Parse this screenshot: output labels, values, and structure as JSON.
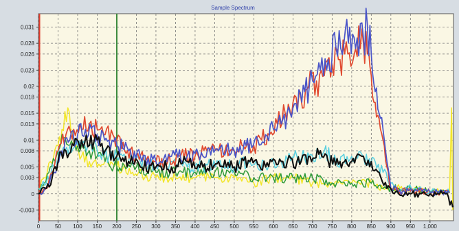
{
  "chart_data": {
    "type": "line",
    "title": "Sample Spectrum",
    "xlabel": "",
    "ylabel": "",
    "xlim": [
      0,
      1060
    ],
    "ylim": [
      -0.005,
      0.0335
    ],
    "grid": true,
    "legend": "none",
    "xticks": [
      0,
      50,
      100,
      150,
      200,
      250,
      300,
      350,
      400,
      450,
      500,
      550,
      600,
      650,
      700,
      750,
      800,
      850,
      900,
      950,
      1000
    ],
    "xtick_labels": [
      "0",
      "50",
      "100",
      "150",
      "200",
      "250",
      "300",
      "350",
      "400",
      "450",
      "500",
      "550",
      "600",
      "650",
      "700",
      "750",
      "800",
      "850",
      "900",
      "950",
      "1,000"
    ],
    "yticks": [
      -0.003,
      0,
      0.003,
      0.005,
      0.008,
      0.01,
      0.013,
      0.015,
      0.018,
      0.02,
      0.023,
      0.026,
      0.028,
      0.031
    ],
    "ytick_labels": [
      "-0.003",
      "0",
      "0.003",
      "0.005",
      "0.008",
      "0.01",
      "0.013",
      "0.015",
      "0.018",
      "0.02",
      "0.023",
      "0.026",
      "0.028",
      "0.031"
    ],
    "vertical_markers": [
      {
        "x": 0,
        "color": "#e03a2a"
      },
      {
        "x": 200,
        "color": "#3c8a3c"
      }
    ],
    "series": [
      {
        "color": "#f2e62a",
        "points": [
          [
            0,
            0.001
          ],
          [
            15,
            0.003
          ],
          [
            30,
            0.006
          ],
          [
            50,
            0.009
          ],
          [
            60,
            0.012
          ],
          [
            75,
            0.016
          ],
          [
            90,
            0.009
          ],
          [
            110,
            0.007
          ],
          [
            130,
            0.006
          ],
          [
            150,
            0.005
          ],
          [
            170,
            0.006
          ],
          [
            200,
            0.005
          ],
          [
            240,
            0.004
          ],
          [
            300,
            0.003
          ],
          [
            350,
            0.003
          ],
          [
            400,
            0.003
          ],
          [
            450,
            0.003
          ],
          [
            500,
            0.003
          ],
          [
            550,
            0.002
          ],
          [
            600,
            0.003
          ],
          [
            650,
            0.003
          ],
          [
            700,
            0.002
          ],
          [
            750,
            0.002
          ],
          [
            800,
            0.002
          ],
          [
            850,
            0.002
          ],
          [
            880,
            0.001
          ],
          [
            900,
            0.001
          ],
          [
            950,
            0.001
          ],
          [
            1000,
            0.0005
          ],
          [
            1050,
            0.0003
          ],
          [
            1055,
            0.016
          ],
          [
            1058,
            -0.003
          ]
        ]
      },
      {
        "color": "#2f9a3a",
        "points": [
          [
            0,
            0.001
          ],
          [
            15,
            0.002
          ],
          [
            30,
            0.005
          ],
          [
            50,
            0.008
          ],
          [
            60,
            0.011
          ],
          [
            80,
            0.009
          ],
          [
            100,
            0.009
          ],
          [
            130,
            0.008
          ],
          [
            150,
            0.007
          ],
          [
            170,
            0.006
          ],
          [
            200,
            0.005
          ],
          [
            250,
            0.005
          ],
          [
            300,
            0.004
          ],
          [
            350,
            0.004
          ],
          [
            400,
            0.004
          ],
          [
            450,
            0.004
          ],
          [
            500,
            0.004
          ],
          [
            550,
            0.003
          ],
          [
            600,
            0.003
          ],
          [
            650,
            0.003
          ],
          [
            700,
            0.003
          ],
          [
            750,
            0.002
          ],
          [
            800,
            0.002
          ],
          [
            850,
            0.002
          ],
          [
            880,
            0.001
          ],
          [
            900,
            0.001
          ],
          [
            950,
            0.001
          ],
          [
            1000,
            0.0005
          ],
          [
            1050,
            0.0003
          ]
        ]
      },
      {
        "color": "#5ad0e0",
        "points": [
          [
            0,
            0.001
          ],
          [
            20,
            0.002
          ],
          [
            40,
            0.005
          ],
          [
            60,
            0.008
          ],
          [
            80,
            0.009
          ],
          [
            100,
            0.009
          ],
          [
            130,
            0.009
          ],
          [
            150,
            0.008
          ],
          [
            180,
            0.007
          ],
          [
            200,
            0.007
          ],
          [
            230,
            0.006
          ],
          [
            260,
            0.006
          ],
          [
            300,
            0.005
          ],
          [
            340,
            0.006
          ],
          [
            380,
            0.005
          ],
          [
            420,
            0.005
          ],
          [
            460,
            0.006
          ],
          [
            500,
            0.005
          ],
          [
            540,
            0.006
          ],
          [
            580,
            0.005
          ],
          [
            620,
            0.006
          ],
          [
            660,
            0.007
          ],
          [
            700,
            0.007
          ],
          [
            730,
            0.008
          ],
          [
            760,
            0.006
          ],
          [
            800,
            0.007
          ],
          [
            830,
            0.007
          ],
          [
            860,
            0.006
          ],
          [
            880,
            0.004
          ],
          [
            900,
            0.002
          ],
          [
            930,
            0.001
          ],
          [
            960,
            0.001
          ],
          [
            1000,
            0.0005
          ],
          [
            1050,
            0.0003
          ]
        ]
      },
      {
        "color": "#e04a30",
        "points": [
          [
            0,
            0
          ],
          [
            20,
            0.001
          ],
          [
            35,
            0.004
          ],
          [
            50,
            0.008
          ],
          [
            70,
            0.011
          ],
          [
            90,
            0.012
          ],
          [
            110,
            0.012
          ],
          [
            130,
            0.013
          ],
          [
            150,
            0.012
          ],
          [
            170,
            0.011
          ],
          [
            190,
            0.011
          ],
          [
            200,
            0.01
          ],
          [
            220,
            0.008
          ],
          [
            250,
            0.007
          ],
          [
            280,
            0.007
          ],
          [
            300,
            0.006
          ],
          [
            330,
            0.006
          ],
          [
            360,
            0.007
          ],
          [
            400,
            0.007
          ],
          [
            430,
            0.008
          ],
          [
            460,
            0.008
          ],
          [
            500,
            0.008
          ],
          [
            520,
            0.009
          ],
          [
            550,
            0.009
          ],
          [
            570,
            0.01
          ],
          [
            590,
            0.011
          ],
          [
            610,
            0.013
          ],
          [
            630,
            0.015
          ],
          [
            650,
            0.017
          ],
          [
            670,
            0.018
          ],
          [
            690,
            0.02
          ],
          [
            710,
            0.021
          ],
          [
            730,
            0.022
          ],
          [
            750,
            0.024
          ],
          [
            770,
            0.025
          ],
          [
            790,
            0.026
          ],
          [
            810,
            0.027
          ],
          [
            830,
            0.028
          ],
          [
            840,
            0.026
          ],
          [
            850,
            0.022
          ],
          [
            860,
            0.017
          ],
          [
            870,
            0.014
          ],
          [
            880,
            0.01
          ],
          [
            890,
            0.005
          ],
          [
            900,
            0.001
          ],
          [
            920,
            0.0005
          ],
          [
            950,
            0.0005
          ],
          [
            1000,
            0.0003
          ],
          [
            1050,
            0.0002
          ]
        ]
      },
      {
        "color": "#4a55c8",
        "points": [
          [
            0,
            0
          ],
          [
            20,
            0.001
          ],
          [
            40,
            0.004
          ],
          [
            60,
            0.008
          ],
          [
            80,
            0.01
          ],
          [
            100,
            0.011
          ],
          [
            120,
            0.012
          ],
          [
            150,
            0.011
          ],
          [
            180,
            0.01
          ],
          [
            200,
            0.009
          ],
          [
            230,
            0.008
          ],
          [
            260,
            0.007
          ],
          [
            300,
            0.006
          ],
          [
            340,
            0.007
          ],
          [
            380,
            0.007
          ],
          [
            420,
            0.007
          ],
          [
            460,
            0.008
          ],
          [
            500,
            0.008
          ],
          [
            530,
            0.009
          ],
          [
            560,
            0.01
          ],
          [
            580,
            0.011
          ],
          [
            600,
            0.012
          ],
          [
            620,
            0.013
          ],
          [
            650,
            0.016
          ],
          [
            680,
            0.019
          ],
          [
            700,
            0.021
          ],
          [
            720,
            0.023
          ],
          [
            740,
            0.025
          ],
          [
            760,
            0.027
          ],
          [
            780,
            0.028
          ],
          [
            795,
            0.031
          ],
          [
            810,
            0.027
          ],
          [
            830,
            0.029
          ],
          [
            840,
            0.0315
          ],
          [
            850,
            0.026
          ],
          [
            860,
            0.019
          ],
          [
            870,
            0.015
          ],
          [
            880,
            0.012
          ],
          [
            890,
            0.006
          ],
          [
            900,
            0.001
          ],
          [
            930,
            0.0005
          ],
          [
            960,
            0.0005
          ],
          [
            1000,
            0.0003
          ],
          [
            1050,
            0.0002
          ]
        ]
      },
      {
        "color": "#111111",
        "points": [
          [
            0,
            0
          ],
          [
            20,
            0.001
          ],
          [
            35,
            0.003
          ],
          [
            50,
            0.006
          ],
          [
            70,
            0.008
          ],
          [
            90,
            0.009
          ],
          [
            110,
            0.01
          ],
          [
            130,
            0.009
          ],
          [
            150,
            0.01
          ],
          [
            170,
            0.008
          ],
          [
            200,
            0.007
          ],
          [
            230,
            0.006
          ],
          [
            260,
            0.005
          ],
          [
            300,
            0.005
          ],
          [
            340,
            0.005
          ],
          [
            380,
            0.006
          ],
          [
            420,
            0.005
          ],
          [
            460,
            0.006
          ],
          [
            500,
            0.005
          ],
          [
            540,
            0.006
          ],
          [
            580,
            0.005
          ],
          [
            620,
            0.006
          ],
          [
            660,
            0.006
          ],
          [
            690,
            0.007
          ],
          [
            720,
            0.008
          ],
          [
            740,
            0.006
          ],
          [
            770,
            0.006
          ],
          [
            800,
            0.006
          ],
          [
            830,
            0.007
          ],
          [
            850,
            0.006
          ],
          [
            870,
            0.004
          ],
          [
            890,
            0.001
          ],
          [
            920,
            0
          ],
          [
            950,
            0
          ],
          [
            1000,
            0
          ],
          [
            1040,
            0
          ],
          [
            1058,
            -0.0025
          ]
        ]
      }
    ]
  }
}
